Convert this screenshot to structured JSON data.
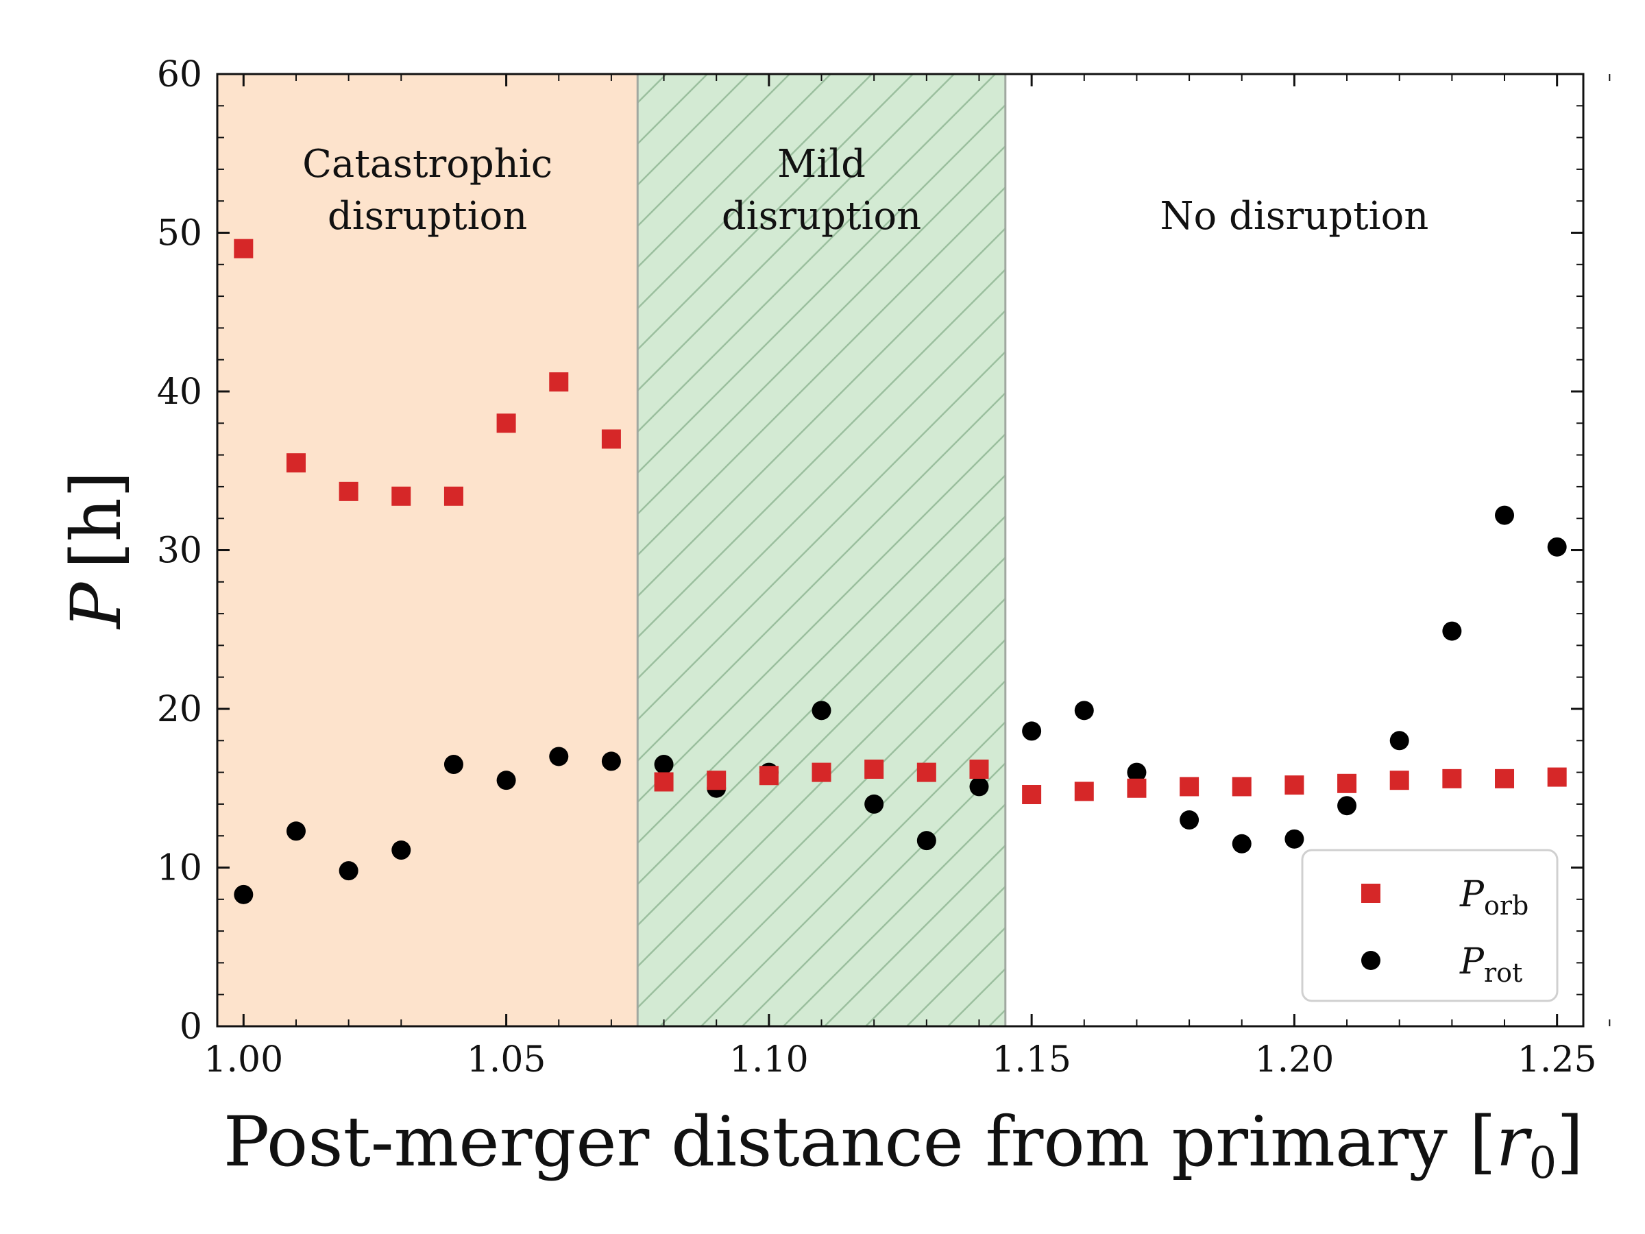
{
  "chart_data": {
    "type": "scatter",
    "title": "",
    "xlabel": "Post-merger distance from primary [r0]",
    "xlabel_main": "Post-merger distance from primary [",
    "xlabel_var": "r",
    "xlabel_sub": "0",
    "xlabel_close": "]",
    "ylabel": "P [h]",
    "ylabel_var": "P",
    "ylabel_unit": "[h]",
    "xlim": [
      0.995,
      1.255
    ],
    "ylim": [
      0,
      60
    ],
    "grid": false,
    "legend_position": "lower-right",
    "x_ticks": [
      1.0,
      1.05,
      1.1,
      1.15,
      1.2,
      1.25
    ],
    "x_tick_labels": [
      "1.00",
      "1.05",
      "1.10",
      "1.15",
      "1.20",
      "1.25"
    ],
    "y_ticks": [
      0,
      10,
      20,
      30,
      40,
      50,
      60
    ],
    "y_tick_labels": [
      "0",
      "10",
      "20",
      "30",
      "40",
      "50",
      "60"
    ],
    "regions": [
      {
        "name": "catastrophic",
        "x_start": 0.995,
        "x_end": 1.075,
        "label_lines": [
          "Catastrophic",
          "disruption"
        ],
        "color": "#fde3cc",
        "hatched": false
      },
      {
        "name": "mild",
        "x_start": 1.075,
        "x_end": 1.145,
        "label_lines": [
          "Mild",
          "disruption"
        ],
        "color": "#d3ead3",
        "hatched": true
      },
      {
        "name": "none",
        "x_start": 1.145,
        "x_end": 1.255,
        "label_lines": [
          "No disruption"
        ],
        "color": "#ffffff",
        "hatched": false
      }
    ],
    "series": [
      {
        "name": "P_orb",
        "legend_label": "P",
        "legend_sub": "orb",
        "marker": "square",
        "color": "#d62728",
        "x": [
          1.0,
          1.01,
          1.02,
          1.03,
          1.04,
          1.05,
          1.06,
          1.07,
          1.08,
          1.09,
          1.1,
          1.11,
          1.12,
          1.13,
          1.14,
          1.15,
          1.16,
          1.17,
          1.18,
          1.19,
          1.2,
          1.21,
          1.22,
          1.23,
          1.24,
          1.25
        ],
        "values": [
          49.0,
          35.5,
          33.7,
          33.4,
          33.4,
          38.0,
          40.6,
          37.0,
          15.4,
          15.5,
          15.8,
          16.0,
          16.2,
          16.0,
          16.2,
          14.6,
          14.8,
          15.0,
          15.1,
          15.1,
          15.2,
          15.3,
          15.5,
          15.6,
          15.6,
          15.7
        ]
      },
      {
        "name": "P_rot",
        "legend_label": "P",
        "legend_sub": "rot",
        "marker": "circle",
        "color": "#000000",
        "x": [
          1.0,
          1.01,
          1.02,
          1.03,
          1.04,
          1.05,
          1.06,
          1.07,
          1.08,
          1.09,
          1.1,
          1.11,
          1.12,
          1.13,
          1.14,
          1.15,
          1.16,
          1.17,
          1.18,
          1.19,
          1.2,
          1.21,
          1.22,
          1.23,
          1.24,
          1.25
        ],
        "values": [
          8.3,
          12.3,
          9.8,
          11.1,
          16.5,
          15.5,
          17.0,
          16.7,
          16.5,
          15.0,
          16.0,
          19.9,
          14.0,
          11.7,
          15.1,
          18.6,
          19.9,
          16.0,
          13.0,
          11.5,
          11.8,
          13.9,
          18.0,
          24.9,
          32.2,
          30.2
        ]
      }
    ]
  }
}
